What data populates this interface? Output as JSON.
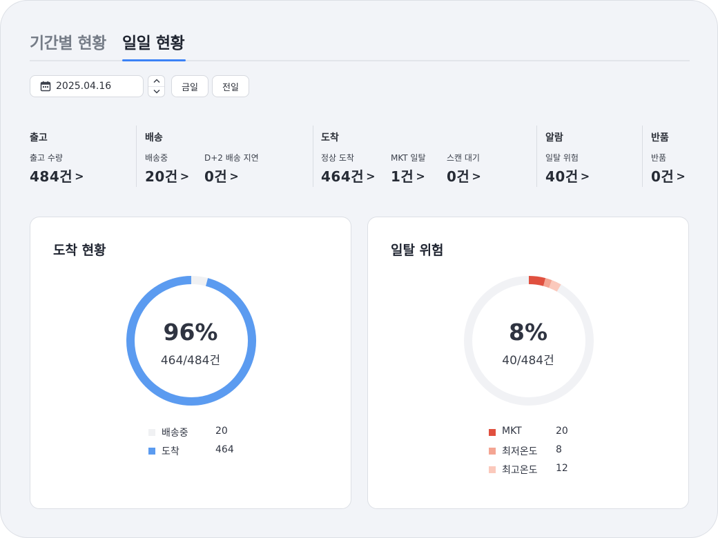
{
  "tabs": [
    {
      "label": "기간별 현황",
      "active": false
    },
    {
      "label": "일일 현황",
      "active": true
    }
  ],
  "date_picker": {
    "value": "2025.04.16",
    "icon": "calendar-icon"
  },
  "buttons": {
    "today": "금일",
    "prev_day": "전일"
  },
  "stats": {
    "shipping_out": {
      "title": "출고",
      "items": [
        {
          "label": "출고 수량",
          "value": "484건"
        }
      ]
    },
    "delivery": {
      "title": "배송",
      "items": [
        {
          "label": "배송중",
          "value": "20건"
        },
        {
          "label": "D+2 배송 지연",
          "value": "0건"
        }
      ]
    },
    "arrival": {
      "title": "도착",
      "items": [
        {
          "label": "정상 도착",
          "value": "464건"
        },
        {
          "label": "MKT 일탈",
          "value": "1건"
        },
        {
          "label": "스캔 대기",
          "value": "0건"
        }
      ]
    },
    "alarm": {
      "title": "알람",
      "items": [
        {
          "label": "일탈 위험",
          "value": "40건"
        }
      ]
    },
    "returns": {
      "title": "반품",
      "items": [
        {
          "label": "반품",
          "value": "0건"
        }
      ]
    }
  },
  "arrival_card": {
    "title": "도착 현황",
    "percent": "96%",
    "ratio": "464/484건",
    "total": 484,
    "legend": [
      {
        "name": "배송중",
        "value": 20,
        "color": "#f0f1f3"
      },
      {
        "name": "도착",
        "value": 464,
        "color": "#5b9bf0"
      }
    ]
  },
  "risk_card": {
    "title": "일탈 위험",
    "percent": "8%",
    "ratio": "40/484건",
    "total": 484,
    "track_color": "#f1f2f5",
    "legend": [
      {
        "name": "MKT",
        "value": 20,
        "color": "#e0503f"
      },
      {
        "name": "최저온도",
        "value": 8,
        "color": "#f4a593"
      },
      {
        "name": "최고온도",
        "value": 12,
        "color": "#fbc9bc"
      }
    ]
  }
}
